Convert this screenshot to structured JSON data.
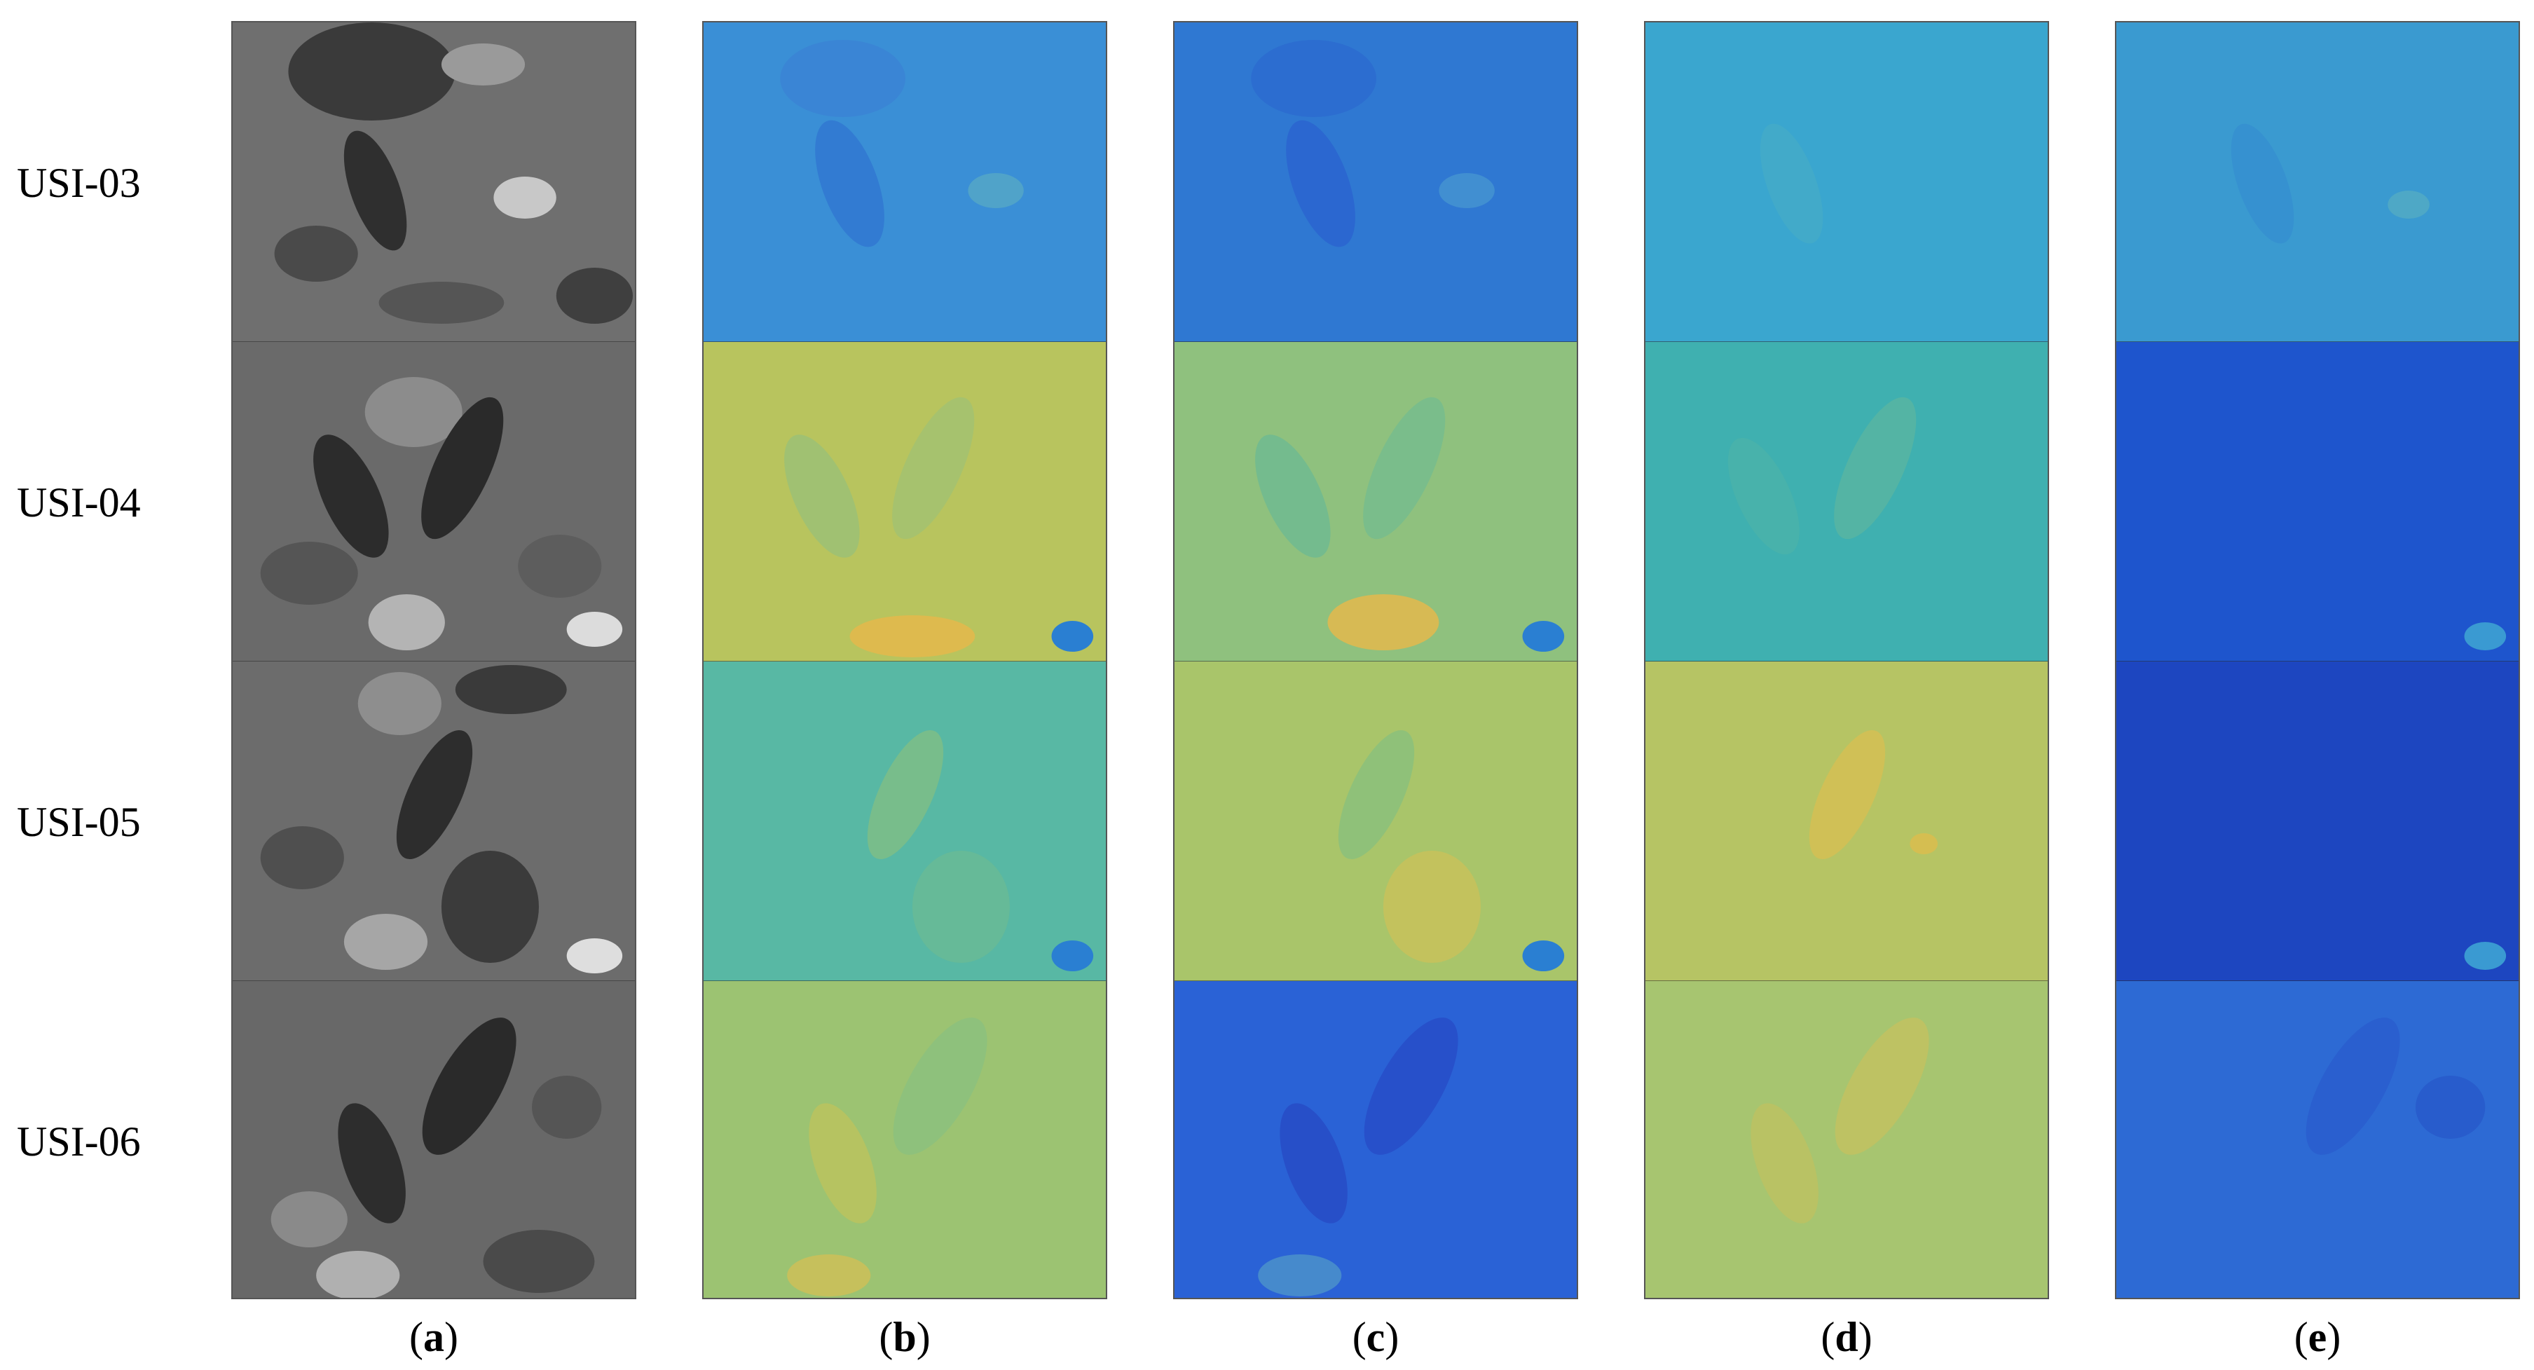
{
  "row_labels": [
    "USI-03",
    "USI-04",
    "USI-05",
    "USI-06"
  ],
  "panels": [
    {
      "letter": "a",
      "kind": "grayscale"
    },
    {
      "letter": "b",
      "kind": "feature-map"
    },
    {
      "letter": "c",
      "kind": "feature-map"
    },
    {
      "letter": "d",
      "kind": "feature-map"
    },
    {
      "letter": "e",
      "kind": "feature-map"
    }
  ],
  "tile_colors": {
    "a": [
      "#6f6f6f",
      "#6a6a6a",
      "#6c6c6c",
      "#686868"
    ],
    "b": [
      "#3a8fd6",
      "#b8c45e",
      "#58b8a4",
      "#9cc372"
    ],
    "c": [
      "#2f78d2",
      "#8fc17e",
      "#a9c56a",
      "#2a62d6"
    ],
    "d": [
      "#3aa6cf",
      "#3fb0b0",
      "#b6c464",
      "#a7c570"
    ],
    "e": [
      "#3a9ad0",
      "#1e55cd",
      "#1d46c0",
      "#2d6ad4"
    ]
  }
}
